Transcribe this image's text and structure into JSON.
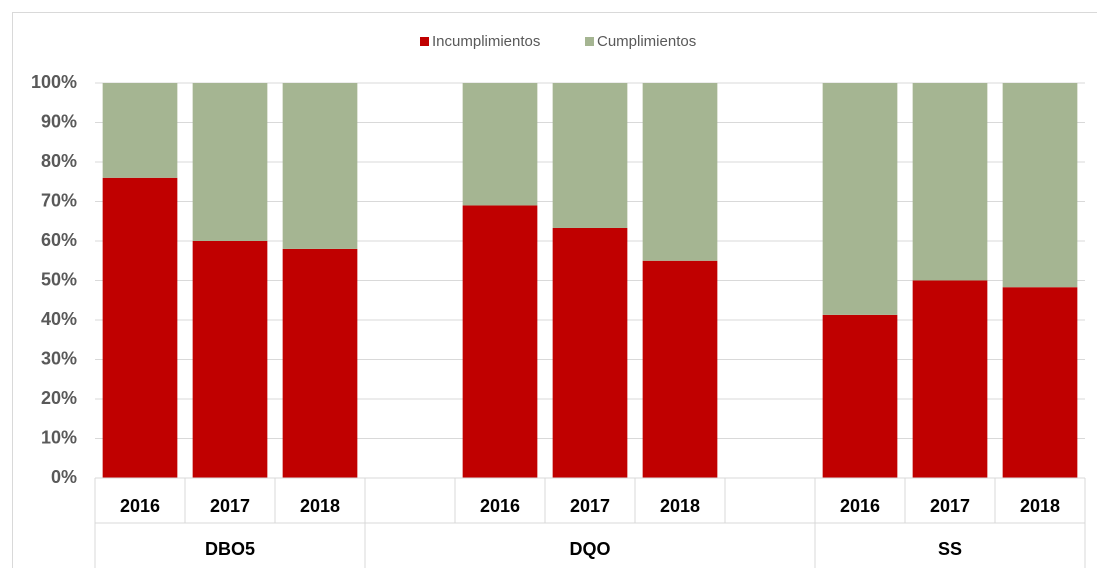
{
  "chart_data": {
    "type": "stacked_bar",
    "categories": [
      "2016",
      "2017",
      "2018",
      null,
      "2016",
      "2017",
      "2018",
      null,
      "2016",
      "2017",
      "2018"
    ],
    "outer_categories": [
      "DBO5",
      "DBO5",
      "DBO5",
      "DQO",
      "DQO",
      "DQO",
      "DQO",
      "DQO",
      "SS",
      "SS",
      "SS"
    ],
    "series": [
      {
        "name": "Incumplimientos",
        "color": "#c00000",
        "values": [
          76,
          60,
          58,
          null,
          69,
          63.3,
          55,
          null,
          41.3,
          50,
          48.3
        ]
      },
      {
        "name": "Cumplimientos",
        "color": "#a5b592",
        "values": [
          24,
          40,
          42,
          null,
          31,
          36.7,
          45,
          null,
          58.7,
          50,
          51.7
        ]
      }
    ],
    "ylim": [
      0,
      100
    ],
    "yticks": [
      {
        "value": 0,
        "label": "0%"
      },
      {
        "value": 10,
        "label": "10%"
      },
      {
        "value": 20,
        "label": "20%"
      },
      {
        "value": 30,
        "label": "30%"
      },
      {
        "value": 40,
        "label": "40%"
      },
      {
        "value": 50,
        "label": "50%"
      },
      {
        "value": 60,
        "label": "60%"
      },
      {
        "value": 70,
        "label": "70%"
      },
      {
        "value": 80,
        "label": "80%"
      },
      {
        "value": 90,
        "label": "90%"
      },
      {
        "value": 100,
        "label": "100%"
      }
    ],
    "grid": true,
    "legend": "top"
  }
}
